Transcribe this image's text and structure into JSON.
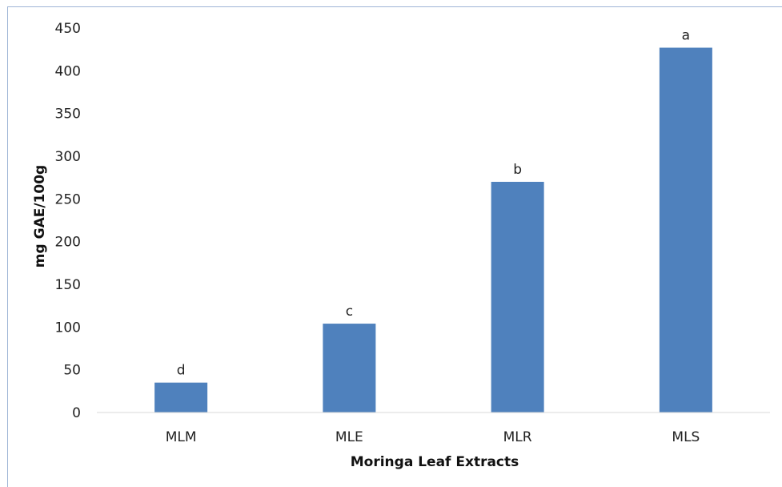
{
  "chart_data": {
    "type": "bar",
    "categories": [
      "MLM",
      "MLE",
      "MLR",
      "MLS"
    ],
    "series": [
      {
        "values": [
          35,
          104,
          270,
          427
        ],
        "color": "#4f81bd",
        "data_labels": [
          "d",
          "c",
          "b",
          "a"
        ]
      }
    ],
    "xlabel": "Moringa Leaf Extracts",
    "ylabel": "mg GAE/100g",
    "ylim": [
      0,
      450
    ],
    "yticks": [
      0,
      50,
      100,
      150,
      200,
      250,
      300,
      350,
      400,
      450
    ],
    "grid": false,
    "legend": "none",
    "colors": {
      "bar": "#4f81bd",
      "axis": "#d9d9d9",
      "frame": "#9fb5d6",
      "text": "#222222"
    }
  }
}
